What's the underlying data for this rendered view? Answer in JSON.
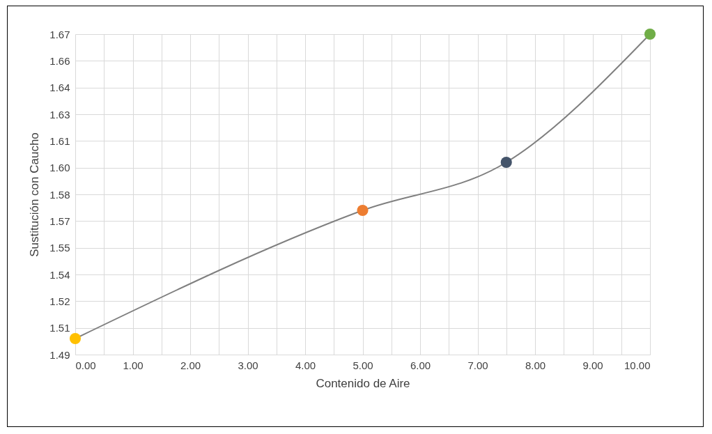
{
  "chart_data": {
    "type": "line",
    "xlabel": "Contenido de Aire",
    "ylabel": "Sustitución con Caucho",
    "x": [
      0,
      5,
      7.5,
      10
    ],
    "series": [
      {
        "color": "#7f7f7f",
        "colors": [
          "#ffc000",
          "#ed7d31",
          "#44546a",
          "#70ad47"
        ],
        "values": [
          1.499,
          1.571,
          1.598,
          1.67
        ]
      }
    ],
    "xlim": [
      0,
      10
    ],
    "xticks": [
      {
        "value": 0,
        "label": "0.00"
      },
      {
        "value": 0.5,
        "label": null
      },
      {
        "value": 1,
        "label": "1.00"
      },
      {
        "value": 1.5,
        "label": null
      },
      {
        "value": 2,
        "label": "2.00"
      },
      {
        "value": 2.5,
        "label": null
      },
      {
        "value": 3,
        "label": "3.00"
      },
      {
        "value": 3.5,
        "label": null
      },
      {
        "value": 4,
        "label": "4.00"
      },
      {
        "value": 4.5,
        "label": null
      },
      {
        "value": 5,
        "label": "5.00"
      },
      {
        "value": 5.5,
        "label": null
      },
      {
        "value": 6,
        "label": "6.00"
      },
      {
        "value": 6.5,
        "label": null
      },
      {
        "value": 7,
        "label": "7.00"
      },
      {
        "value": 7.5,
        "label": null
      },
      {
        "value": 8,
        "label": "8.00"
      },
      {
        "value": 8.5,
        "label": null
      },
      {
        "value": 9,
        "label": "9.00"
      },
      {
        "value": 9.5,
        "label": null
      },
      {
        "value": 10,
        "label": "10.00"
      }
    ],
    "ylim": [
      1.49,
      1.67
    ],
    "yticks": [
      1.49,
      {
        "value": 1.505,
        "label": "1.51"
      },
      1.52,
      {
        "value": 1.535,
        "label": "1.54"
      },
      1.55,
      {
        "value": 1.565,
        "label": "1.57"
      },
      1.58,
      {
        "value": 1.595,
        "label": "1.60"
      },
      1.61,
      {
        "value": 1.625,
        "label": "1.63"
      },
      1.64,
      {
        "value": 1.655,
        "label": "1.66"
      },
      1.67
    ],
    "grid": true,
    "marker": "circle",
    "line_style": "solid"
  }
}
